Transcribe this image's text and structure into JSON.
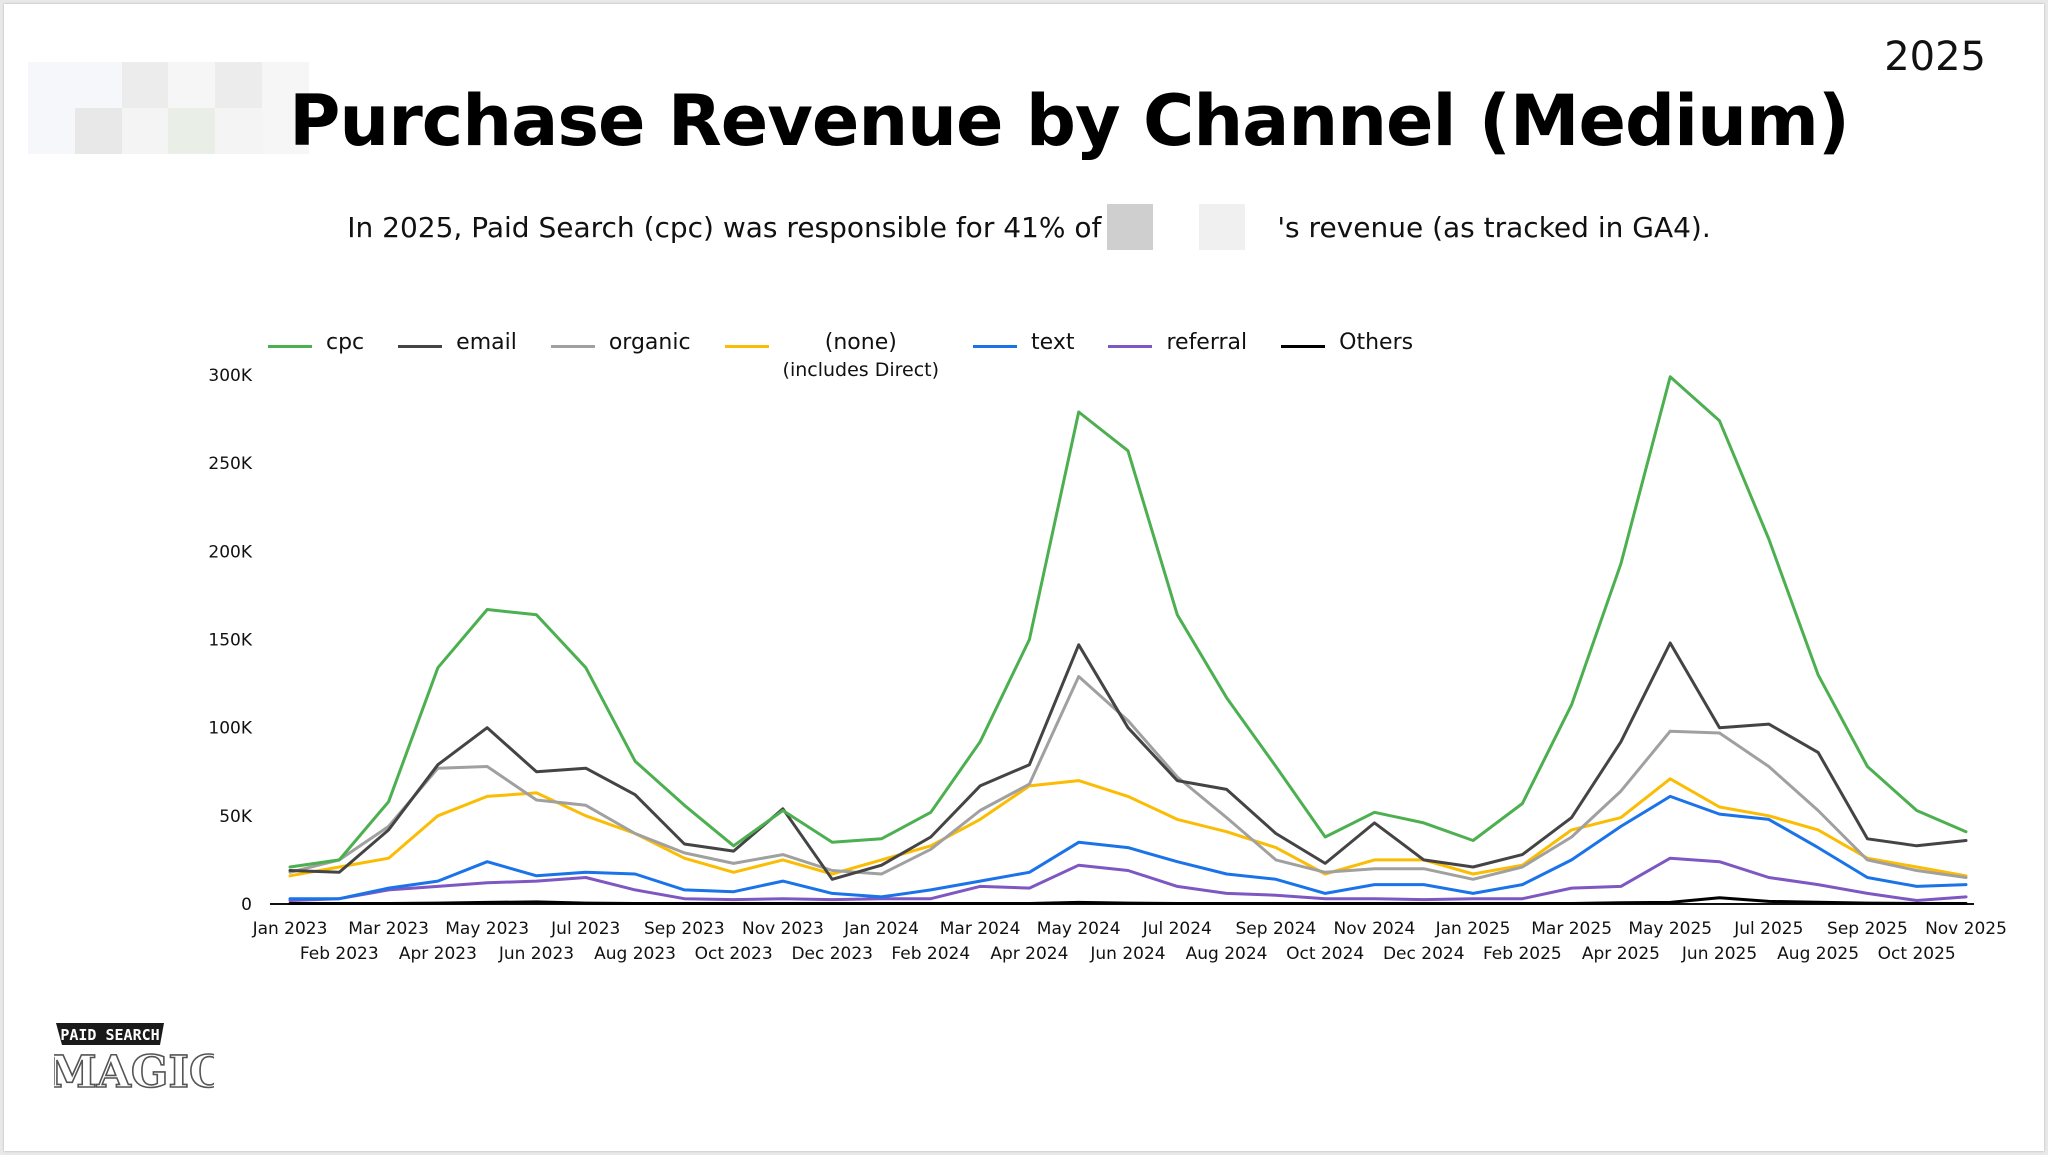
{
  "header": {
    "year": "2025",
    "title": "Purchase Revenue by Channel (Medium)",
    "subtitle_start": "In 2025, Paid Search (cpc) was responsible for 41% of",
    "subtitle_end": "'s revenue (as tracked in GA4)."
  },
  "brand": {
    "line1": "PAID SEARCH",
    "line2": "MAGIC"
  },
  "colors": {
    "cpc": "#4caf50",
    "email": "#444444",
    "organic": "#a0a0a0",
    "none": "#fbbc04",
    "text": "#1a73e8",
    "referral": "#7e57c2",
    "others": "#000000"
  },
  "chart_data": {
    "type": "line",
    "title": "Purchase Revenue by Channel (Medium)",
    "legend_position": "top",
    "grid": false,
    "ylim": [
      0,
      300000
    ],
    "yticks": [
      "0",
      "50K",
      "100K",
      "150K",
      "200K",
      "250K",
      "300K"
    ],
    "ytick_values": [
      0,
      50000,
      100000,
      150000,
      200000,
      250000,
      300000
    ],
    "categories": [
      "Jan 2023",
      "Feb 2023",
      "Mar 2023",
      "Apr 2023",
      "May 2023",
      "Jun 2023",
      "Jul 2023",
      "Aug 2023",
      "Sep 2023",
      "Oct 2023",
      "Nov 2023",
      "Dec 2023",
      "Jan 2024",
      "Feb 2024",
      "Mar 2024",
      "Apr 2024",
      "May 2024",
      "Jun 2024",
      "Jul 2024",
      "Aug 2024",
      "Sep 2024",
      "Oct 2024",
      "Nov 2024",
      "Dec 2024",
      "Jan 2025",
      "Feb 2025",
      "Mar 2025",
      "Apr 2025",
      "May 2025",
      "Jun 2025",
      "Jul 2025",
      "Aug 2025",
      "Sep 2025",
      "Oct 2025",
      "Nov 2025"
    ],
    "series": [
      {
        "name": "cpc",
        "color_key": "cpc",
        "values": [
          21000,
          25000,
          58000,
          134000,
          167000,
          164000,
          134000,
          81000,
          56000,
          33000,
          53000,
          35000,
          37000,
          52000,
          92000,
          150000,
          279000,
          257000,
          164000,
          117000,
          78000,
          38000,
          52000,
          46000,
          36000,
          57000,
          113000,
          193000,
          299000,
          274000,
          207000,
          130000,
          78000,
          53000,
          41000
        ]
      },
      {
        "name": "email",
        "color_key": "email",
        "values": [
          19000,
          18000,
          42000,
          79000,
          100000,
          75000,
          77000,
          62000,
          34000,
          30000,
          54000,
          14000,
          22000,
          38000,
          67000,
          79000,
          147000,
          100000,
          70000,
          65000,
          40000,
          23000,
          46000,
          25000,
          21000,
          28000,
          49000,
          92000,
          148000,
          100000,
          102000,
          86000,
          37000,
          33000,
          36000
        ]
      },
      {
        "name": "organic",
        "color_key": "organic",
        "values": [
          18000,
          25000,
          44000,
          77000,
          78000,
          59000,
          56000,
          40000,
          29000,
          23000,
          28000,
          19000,
          17000,
          31000,
          53000,
          68000,
          129000,
          104000,
          72000,
          49000,
          25000,
          18000,
          20000,
          20000,
          14000,
          21000,
          38000,
          64000,
          98000,
          97000,
          78000,
          53000,
          25000,
          19000,
          15000
        ]
      },
      {
        "name": "(none)",
        "note": "(includes Direct)",
        "color_key": "none",
        "values": [
          16000,
          21000,
          26000,
          50000,
          61000,
          63000,
          50000,
          40000,
          26000,
          18000,
          25000,
          17000,
          25000,
          33000,
          48000,
          67000,
          70000,
          61000,
          48000,
          41000,
          32000,
          17000,
          25000,
          25000,
          17000,
          22000,
          42000,
          49000,
          71000,
          55000,
          50000,
          42000,
          26000,
          21000,
          16000
        ]
      },
      {
        "name": "text",
        "color_key": "text",
        "values": [
          3000,
          3000,
          9000,
          13000,
          24000,
          16000,
          18000,
          17000,
          8000,
          7000,
          13000,
          6000,
          4000,
          8000,
          13000,
          18000,
          35000,
          32000,
          24000,
          17000,
          14000,
          6000,
          11000,
          11000,
          6000,
          11000,
          25000,
          44000,
          61000,
          51000,
          48000,
          32000,
          15000,
          10000,
          11000
        ]
      },
      {
        "name": "referral",
        "color_key": "referral",
        "values": [
          2000,
          3000,
          8000,
          10000,
          12000,
          13000,
          15000,
          8000,
          3000,
          2500,
          3000,
          2500,
          3000,
          3000,
          10000,
          9000,
          22000,
          19000,
          10000,
          6000,
          5000,
          3000,
          3000,
          2500,
          3000,
          3000,
          9000,
          10000,
          26000,
          24000,
          15000,
          11000,
          6000,
          2000,
          4000
        ]
      },
      {
        "name": "Others",
        "color_key": "others",
        "values": [
          300,
          300,
          300,
          500,
          900,
          1200,
          500,
          300,
          300,
          300,
          300,
          300,
          300,
          300,
          300,
          300,
          900,
          500,
          300,
          300,
          300,
          300,
          300,
          300,
          300,
          300,
          300,
          700,
          900,
          3500,
          1500,
          1000,
          500,
          300,
          300
        ]
      }
    ]
  }
}
